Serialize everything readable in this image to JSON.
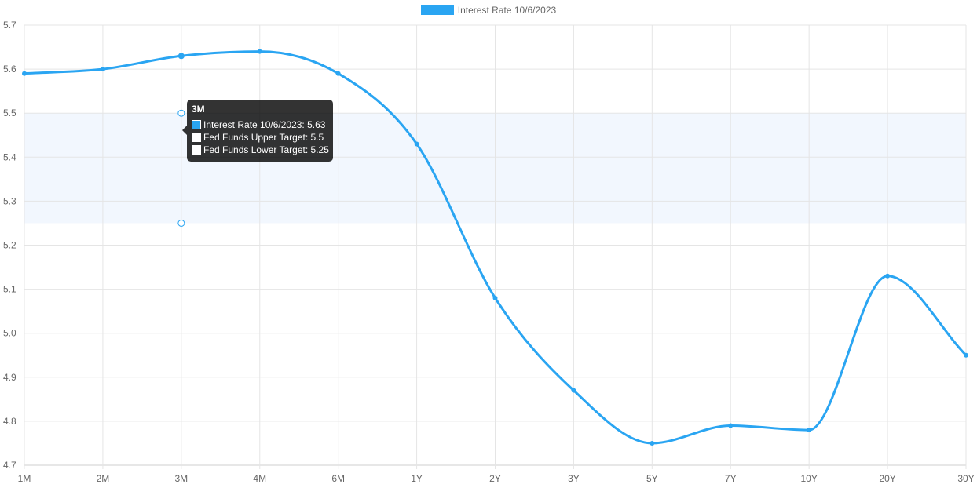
{
  "chart_data": {
    "type": "line",
    "categories": [
      "1M",
      "2M",
      "3M",
      "4M",
      "6M",
      "1Y",
      "2Y",
      "3Y",
      "5Y",
      "7Y",
      "10Y",
      "20Y",
      "30Y"
    ],
    "series": [
      {
        "name": "Interest Rate 10/6/2023",
        "color": "#2AA5F2",
        "values": [
          5.59,
          5.6,
          5.63,
          5.64,
          5.59,
          5.43,
          5.08,
          4.87,
          4.75,
          4.79,
          4.78,
          5.13,
          4.95
        ]
      }
    ],
    "fed_funds_band": {
      "upper": 5.5,
      "lower": 5.25,
      "fill_color": "#F2F7FE"
    },
    "ylim": [
      4.7,
      5.7
    ],
    "yticks": [
      "5.7",
      "5.6",
      "5.5",
      "5.4",
      "5.3",
      "5.2",
      "5.1",
      "5.0",
      "4.9",
      "4.8",
      "4.7"
    ],
    "grid": true,
    "legend": {
      "position": "top-center",
      "label": "Interest Rate 10/6/2023"
    },
    "tooltip": {
      "title": "3M",
      "rows": [
        {
          "text": "Interest Rate 10/6/2023: 5.63",
          "swatch": "#2AA5F2"
        },
        {
          "text": "Fed Funds Upper Target: 5.5",
          "swatch": "#ffffff"
        },
        {
          "text": "Fed Funds Lower Target: 5.25",
          "swatch": "#ffffff"
        }
      ]
    }
  }
}
